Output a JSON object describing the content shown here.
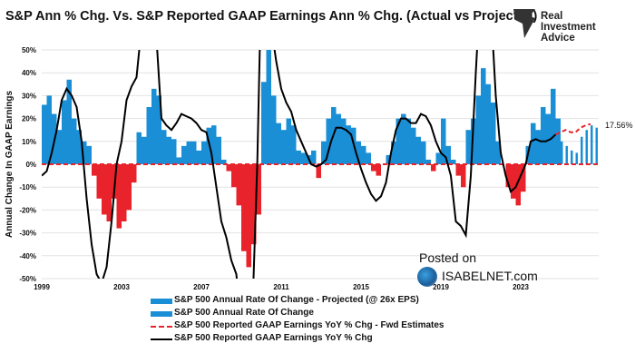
{
  "title": "S&P Ann % Chg. Vs. S&P Reported GAAP Earnings Ann % Chg. (Actual vs Projected)",
  "logo": {
    "text_lines": [
      "Real",
      "Investment",
      "Advice"
    ]
  },
  "watermark": {
    "line1": "Posted on",
    "line2": "ISABELNET.com"
  },
  "colors": {
    "positive_bar": "#1a8fd6",
    "negative_bar": "#e8232b",
    "projected_bar": "#1a8fd6",
    "earnings_line": "#000000",
    "forecast_line": "#e8232b"
  },
  "chart_data": {
    "type": "bar+line",
    "ylabel": "Annual Change In GAAP Earnings",
    "ylim": [
      -50,
      50
    ],
    "yticks": [
      "-50%",
      "-40%",
      "-30%",
      "-20%",
      "-10%",
      "0%",
      "10%",
      "20%",
      "30%",
      "40%",
      "50%"
    ],
    "xticks": [
      "1999",
      "2003",
      "2007",
      "2011",
      "2015",
      "2019",
      "2023"
    ],
    "grid": true,
    "end_label": "17.56%",
    "legend": [
      {
        "label": "S&P 500 Annual Rate Of Change - Projected (@ 26x EPS)",
        "style": "bar-light"
      },
      {
        "label": "S&P 500 Annual Rate Of Change",
        "style": "bar"
      },
      {
        "label": "S&P 500 Reported GAAP Earnings YoY % Chg - Fwd Estimates",
        "style": "dashed-red"
      },
      {
        "label": "S&P 500 Reported GAAP Earnings YoY  % Chg",
        "style": "solid-black"
      }
    ],
    "bars_actual": {
      "start": 1999.0,
      "step": 0.25,
      "values": [
        26,
        30,
        22,
        15,
        28,
        37,
        20,
        15,
        10,
        8,
        -5,
        -15,
        -22,
        -25,
        -15,
        -28,
        -25,
        -20,
        -8,
        14,
        12,
        25,
        33,
        30,
        15,
        12,
        11,
        3,
        8,
        10,
        10,
        6,
        10,
        16,
        17,
        12,
        2,
        -3,
        -10,
        -18,
        -38,
        -45,
        -35,
        -22,
        36,
        50,
        30,
        18,
        15,
        20,
        17,
        6,
        5,
        4,
        6,
        -6,
        10,
        20,
        25,
        22,
        20,
        17,
        16,
        10,
        8,
        5,
        -3,
        -5,
        0,
        4,
        10,
        20,
        22,
        20,
        16,
        12,
        10,
        2,
        -3,
        5,
        20,
        8,
        2,
        -5,
        -10,
        15,
        20,
        30,
        42,
        35,
        27,
        10,
        0,
        -10,
        -15,
        -18,
        -12,
        8,
        18,
        15,
        25,
        22,
        33,
        20
      ]
    },
    "bars_projected": {
      "start": 2025.0,
      "step": 0.25,
      "values": [
        10,
        8,
        6,
        5,
        12,
        15,
        17,
        16
      ]
    },
    "earnings_line": [
      [
        1999.0,
        -5
      ],
      [
        1999.25,
        -3
      ],
      [
        1999.5,
        5
      ],
      [
        1999.75,
        15
      ],
      [
        2000.0,
        28
      ],
      [
        2000.25,
        33
      ],
      [
        2000.5,
        30
      ],
      [
        2000.75,
        25
      ],
      [
        2001.0,
        10
      ],
      [
        2001.25,
        -15
      ],
      [
        2001.5,
        -35
      ],
      [
        2001.75,
        -48
      ],
      [
        2002.0,
        -52
      ],
      [
        2002.25,
        -45
      ],
      [
        2002.5,
        -25
      ],
      [
        2002.75,
        0
      ],
      [
        2003.0,
        10
      ],
      [
        2003.25,
        28
      ],
      [
        2003.5,
        34
      ],
      [
        2003.75,
        38
      ],
      [
        2004.0,
        60
      ],
      [
        2004.5,
        70
      ],
      [
        2004.75,
        55
      ],
      [
        2005.0,
        20
      ],
      [
        2005.25,
        17
      ],
      [
        2005.5,
        15
      ],
      [
        2005.75,
        18
      ],
      [
        2006.0,
        22
      ],
      [
        2006.25,
        21
      ],
      [
        2006.5,
        20
      ],
      [
        2006.75,
        18
      ],
      [
        2007.0,
        15
      ],
      [
        2007.25,
        14
      ],
      [
        2007.5,
        5
      ],
      [
        2007.75,
        -10
      ],
      [
        2008.0,
        -25
      ],
      [
        2008.25,
        -32
      ],
      [
        2008.5,
        -42
      ],
      [
        2008.75,
        -48
      ],
      [
        2009.0,
        -70
      ],
      [
        2009.5,
        -80
      ],
      [
        2009.8,
        0
      ],
      [
        2010.0,
        80
      ],
      [
        2010.5,
        60
      ],
      [
        2010.75,
        45
      ],
      [
        2011.0,
        33
      ],
      [
        2011.25,
        27
      ],
      [
        2011.5,
        23
      ],
      [
        2011.75,
        15
      ],
      [
        2012.0,
        10
      ],
      [
        2012.25,
        5
      ],
      [
        2012.5,
        0
      ],
      [
        2012.75,
        -1
      ],
      [
        2013.0,
        0
      ],
      [
        2013.25,
        2
      ],
      [
        2013.5,
        10
      ],
      [
        2013.75,
        16
      ],
      [
        2014.0,
        16
      ],
      [
        2014.25,
        15
      ],
      [
        2014.5,
        13
      ],
      [
        2014.75,
        5
      ],
      [
        2015.0,
        -2
      ],
      [
        2015.25,
        -8
      ],
      [
        2015.5,
        -13
      ],
      [
        2015.75,
        -16
      ],
      [
        2016.0,
        -14
      ],
      [
        2016.25,
        -8
      ],
      [
        2016.5,
        5
      ],
      [
        2016.75,
        15
      ],
      [
        2017.0,
        20
      ],
      [
        2017.25,
        20
      ],
      [
        2017.5,
        18
      ],
      [
        2017.75,
        18
      ],
      [
        2018.0,
        22
      ],
      [
        2018.25,
        21
      ],
      [
        2018.5,
        17
      ],
      [
        2018.75,
        10
      ],
      [
        2019.0,
        5
      ],
      [
        2019.25,
        3
      ],
      [
        2019.5,
        -5
      ],
      [
        2019.75,
        -25
      ],
      [
        2020.0,
        -27
      ],
      [
        2020.25,
        -31
      ],
      [
        2020.5,
        -5
      ],
      [
        2020.75,
        40
      ],
      [
        2021.0,
        80
      ],
      [
        2021.5,
        70
      ],
      [
        2021.75,
        30
      ],
      [
        2022.0,
        5
      ],
      [
        2022.25,
        -5
      ],
      [
        2022.5,
        -12
      ],
      [
        2022.75,
        -10
      ],
      [
        2023.0,
        -5
      ],
      [
        2023.25,
        0
      ],
      [
        2023.5,
        10
      ],
      [
        2023.75,
        11
      ],
      [
        2024.0,
        10
      ],
      [
        2024.25,
        10
      ],
      [
        2024.5,
        11
      ],
      [
        2024.75,
        13
      ]
    ],
    "forecast_line": [
      [
        2024.75,
        13
      ],
      [
        2025.0,
        14
      ],
      [
        2025.25,
        15
      ],
      [
        2025.5,
        14
      ],
      [
        2025.75,
        14
      ],
      [
        2026.0,
        16
      ],
      [
        2026.25,
        17
      ],
      [
        2026.5,
        17.56
      ]
    ]
  }
}
